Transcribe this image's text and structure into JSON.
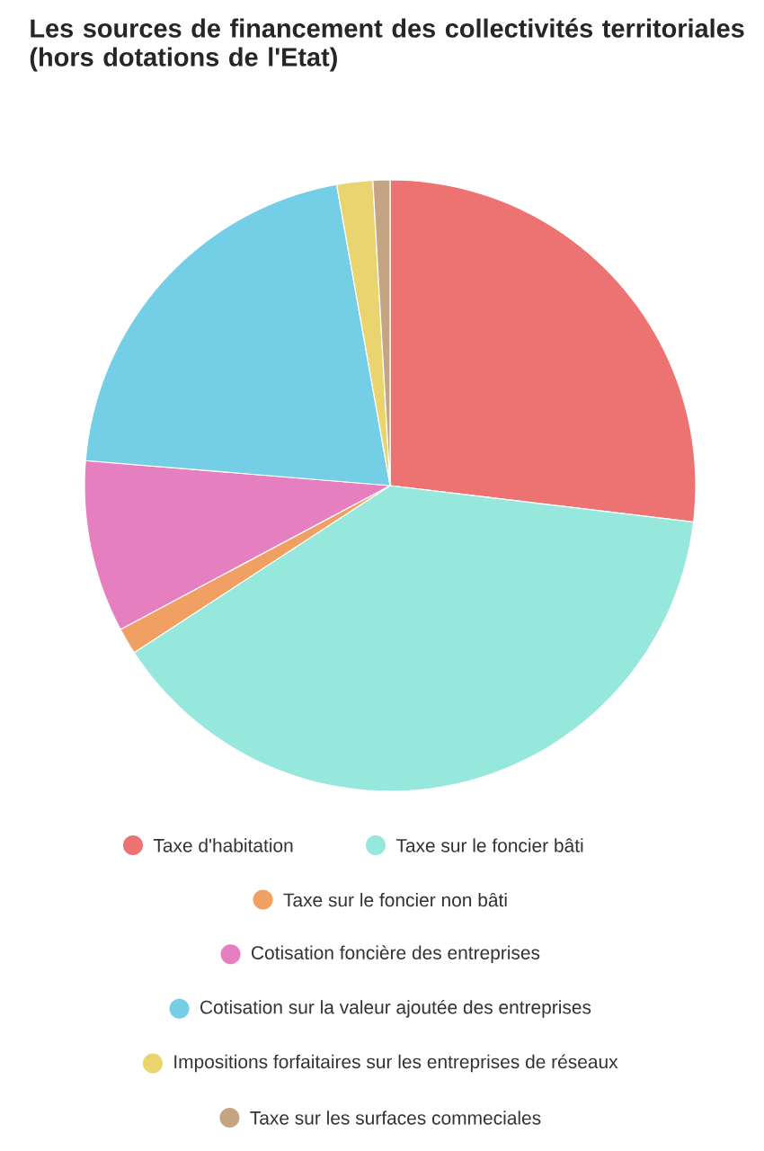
{
  "chart_data": {
    "type": "pie",
    "title": "Les sources de financement des collectivités territoriales (hors dotations de l'Etat)",
    "categories": [
      "Taxe d'habitation",
      "Taxe sur le foncier bâti",
      "Taxe sur le foncier non bâti",
      "Cotisation foncière des entreprises",
      "Cotisation sur la valeur ajoutée des entreprises",
      "Impositions forfaitaires sur les entreprises de réseaux",
      "Taxe sur les surfaces commeciales"
    ],
    "values": [
      26.9,
      38.9,
      1.4,
      9.1,
      20.9,
      1.9,
      0.9
    ],
    "colors": [
      "#ec7372",
      "#96e7dc",
      "#f0a062",
      "#e67fc0",
      "#74cfe6",
      "#e9d46f",
      "#c4a482"
    ],
    "legend": "bottom"
  }
}
